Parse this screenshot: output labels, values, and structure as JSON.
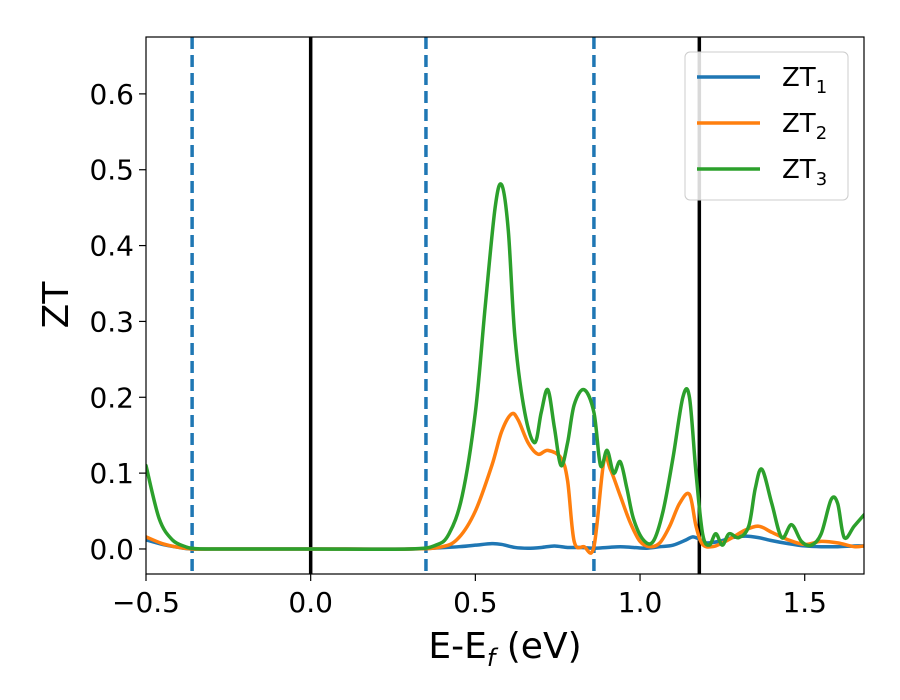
{
  "chart_data": {
    "type": "line",
    "title": "",
    "xlabel": "E-E",
    "xlabel_sub": "f",
    "xlabel_unit": " (eV)",
    "ylabel": "ZT",
    "xlim": [
      -0.5,
      1.68
    ],
    "ylim": [
      -0.033,
      0.675
    ],
    "grid": false,
    "legend_position": "top-right",
    "xticks": [
      -0.5,
      0.0,
      0.5,
      1.0,
      1.5
    ],
    "xtick_labels": [
      "−0.5",
      "0.0",
      "0.5",
      "1.0",
      "1.5"
    ],
    "yticks": [
      0.0,
      0.1,
      0.2,
      0.3,
      0.4,
      0.5,
      0.6
    ],
    "ytick_labels": [
      "0.0",
      "0.1",
      "0.2",
      "0.3",
      "0.4",
      "0.5",
      "0.6"
    ],
    "vlines_solid": [
      0.0,
      1.18
    ],
    "vlines_dashed": [
      -0.36,
      0.35,
      0.86
    ],
    "series": [
      {
        "name": "ZT",
        "name_sub": "1",
        "color": "#1f77b4",
        "x": [
          -0.5,
          -0.45,
          -0.4,
          -0.36,
          -0.3,
          0.0,
          0.3,
          0.45,
          0.5,
          0.55,
          0.58,
          0.62,
          0.66,
          0.7,
          0.74,
          0.78,
          0.82,
          0.86,
          0.9,
          0.94,
          0.98,
          1.02,
          1.06,
          1.1,
          1.14,
          1.16,
          1.18,
          1.2,
          1.24,
          1.28,
          1.32,
          1.36,
          1.4,
          1.45,
          1.5,
          1.55,
          1.6,
          1.65,
          1.68
        ],
        "y": [
          0.012,
          0.006,
          0.002,
          0.0,
          0.0,
          0.0,
          0.0,
          0.003,
          0.005,
          0.007,
          0.006,
          0.002,
          0.001,
          0.002,
          0.004,
          0.002,
          0.002,
          0.001,
          0.002,
          0.003,
          0.002,
          0.001,
          0.003,
          0.005,
          0.012,
          0.016,
          0.013,
          0.008,
          0.01,
          0.015,
          0.017,
          0.015,
          0.011,
          0.007,
          0.004,
          0.003,
          0.003,
          0.004,
          0.004
        ]
      },
      {
        "name": "ZT",
        "name_sub": "2",
        "color": "#ff7f0e",
        "x": [
          -0.5,
          -0.45,
          -0.4,
          -0.36,
          -0.3,
          0.0,
          0.3,
          0.4,
          0.45,
          0.5,
          0.55,
          0.58,
          0.61,
          0.63,
          0.66,
          0.69,
          0.72,
          0.76,
          0.78,
          0.8,
          0.83,
          0.86,
          0.89,
          0.91,
          0.94,
          0.97,
          1.0,
          1.03,
          1.06,
          1.09,
          1.12,
          1.15,
          1.17,
          1.19,
          1.22,
          1.25,
          1.28,
          1.32,
          1.36,
          1.4,
          1.45,
          1.5,
          1.55,
          1.6,
          1.65,
          1.68
        ],
        "y": [
          0.016,
          0.007,
          0.002,
          0.0,
          0.0,
          0.0,
          0.0,
          0.003,
          0.015,
          0.05,
          0.11,
          0.155,
          0.178,
          0.17,
          0.14,
          0.125,
          0.13,
          0.12,
          0.09,
          0.01,
          0.003,
          0.003,
          0.115,
          0.105,
          0.07,
          0.035,
          0.01,
          0.003,
          0.008,
          0.03,
          0.06,
          0.072,
          0.03,
          0.006,
          0.003,
          0.008,
          0.015,
          0.025,
          0.03,
          0.022,
          0.012,
          0.006,
          0.01,
          0.008,
          0.003,
          0.004
        ]
      },
      {
        "name": "ZT",
        "name_sub": "3",
        "color": "#2ca02c",
        "x": [
          -0.5,
          -0.46,
          -0.42,
          -0.38,
          -0.36,
          -0.3,
          0.0,
          0.3,
          0.38,
          0.42,
          0.46,
          0.5,
          0.53,
          0.56,
          0.58,
          0.6,
          0.62,
          0.65,
          0.68,
          0.7,
          0.72,
          0.74,
          0.76,
          0.78,
          0.8,
          0.83,
          0.86,
          0.88,
          0.9,
          0.92,
          0.94,
          0.96,
          0.98,
          1.01,
          1.04,
          1.07,
          1.1,
          1.13,
          1.15,
          1.17,
          1.19,
          1.21,
          1.23,
          1.25,
          1.27,
          1.3,
          1.33,
          1.35,
          1.37,
          1.4,
          1.43,
          1.46,
          1.49,
          1.52,
          1.55,
          1.58,
          1.6,
          1.62,
          1.65,
          1.68
        ],
        "y": [
          0.11,
          0.04,
          0.012,
          0.003,
          0.001,
          0.0,
          0.0,
          0.0,
          0.005,
          0.02,
          0.07,
          0.18,
          0.32,
          0.45,
          0.48,
          0.42,
          0.28,
          0.18,
          0.14,
          0.18,
          0.21,
          0.16,
          0.11,
          0.14,
          0.19,
          0.21,
          0.18,
          0.11,
          0.13,
          0.1,
          0.115,
          0.08,
          0.04,
          0.012,
          0.01,
          0.05,
          0.12,
          0.2,
          0.2,
          0.1,
          0.02,
          0.005,
          0.02,
          0.005,
          0.02,
          0.015,
          0.03,
          0.08,
          0.105,
          0.06,
          0.015,
          0.032,
          0.01,
          0.005,
          0.02,
          0.065,
          0.06,
          0.015,
          0.03,
          0.045
        ]
      }
    ]
  }
}
